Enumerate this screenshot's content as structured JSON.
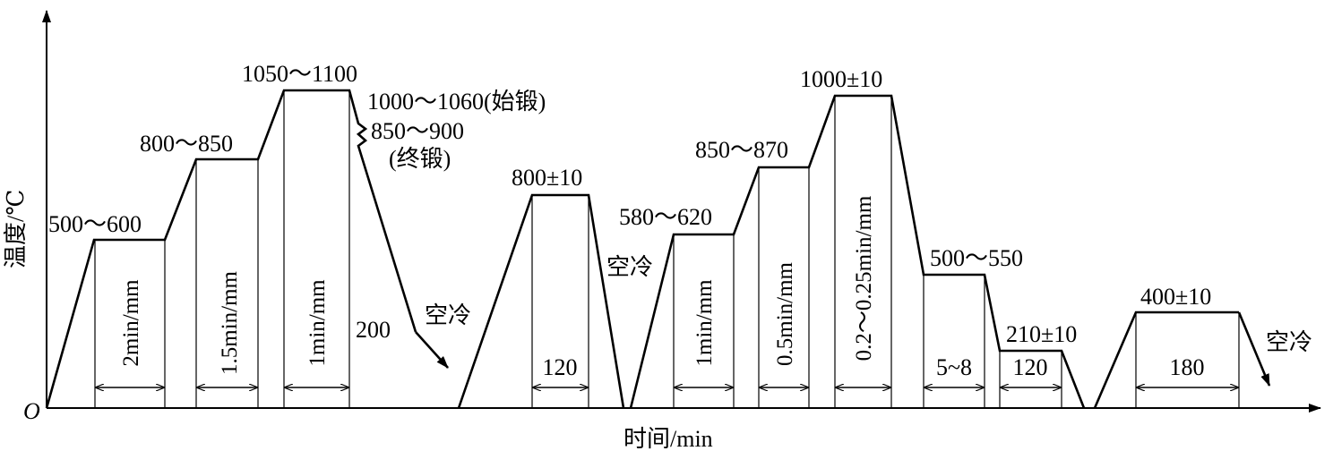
{
  "axes": {
    "origin": "O",
    "y_label": "温度/℃",
    "x_label": "时间/min"
  },
  "temperatures": {
    "t1": "500～600",
    "t2": "800～850",
    "t3": "1050～1100",
    "forge_start": "1000～1060(始锻)",
    "forge_end": "850～900",
    "forge_end_note": "(终锻)",
    "t200": "200",
    "anneal": "800±10",
    "p1": "580～620",
    "p2": "850～870",
    "p3": "1000±10",
    "p4": "500～550",
    "p5": "210±10",
    "temper": "400±10"
  },
  "cooling": {
    "c1": "空冷",
    "c2": "空冷",
    "c3": "空冷"
  },
  "holds": {
    "h1": "2min/mm",
    "h2": "1.5min/mm",
    "h3": "1min/mm",
    "h4": "120",
    "h5": "1min/mm",
    "h6": "0.5min/mm",
    "h7": "0.2～0.25min/mm",
    "h8": "5~8",
    "h9": "120",
    "h10": "180"
  }
}
